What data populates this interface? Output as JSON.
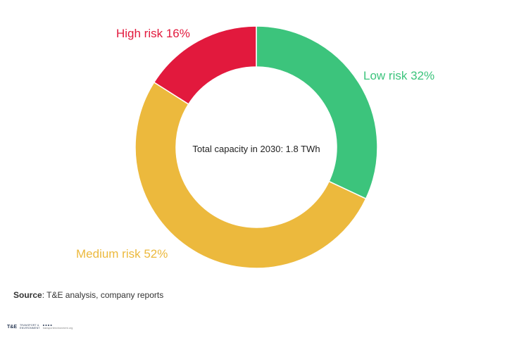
{
  "chart_data": {
    "type": "pie",
    "donut": true,
    "center_label": "Total capacity in 2030: 1.8 TWh",
    "slices": [
      {
        "name": "Low risk",
        "value": 32,
        "label": "Low risk 32%",
        "color": "#3cc47c"
      },
      {
        "name": "Medium risk",
        "value": 52,
        "label": "Medium risk 52%",
        "color": "#ecb93d"
      },
      {
        "name": "High risk",
        "value": 16,
        "label": "High risk 16%",
        "color": "#e2193d"
      }
    ],
    "start": "12 o'clock",
    "direction": "clockwise"
  },
  "source": {
    "prefix": "Source",
    "text": ": T&E analysis, company reports"
  },
  "footer": {
    "logo_mark": "T&E",
    "logo_line1": "TRANSPORT &",
    "logo_line2": "ENVIRONMENT",
    "icons": "■ ■ ■ ■",
    "url": "transportenvironment.org"
  }
}
